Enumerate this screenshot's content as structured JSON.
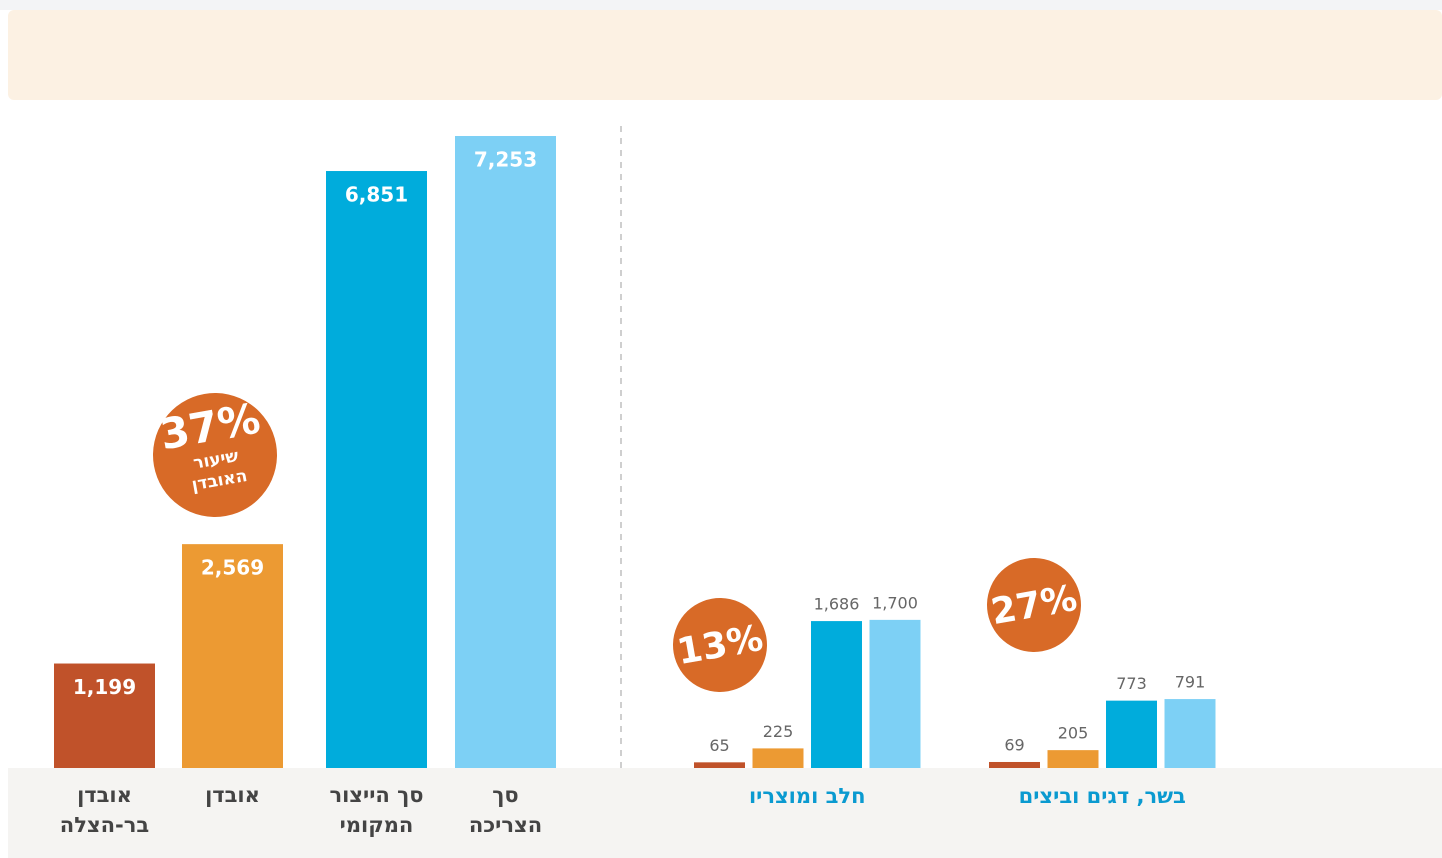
{
  "chart_data": [
    {
      "type": "bar",
      "categories": [
        [
          "אובדן",
          "בר-הצלה"
        ],
        [
          "אובדן"
        ],
        [
          "סך הייצור",
          "המקומי"
        ],
        [
          "סך",
          "הצריכה"
        ]
      ],
      "values": [
        1199,
        2569,
        6851,
        7253
      ],
      "value_labels": [
        "1,199",
        "2,569",
        "6,851",
        "7,253"
      ],
      "colors": [
        "#c0522a",
        "#ec9a33",
        "#00acdc",
        "#7dd0f5"
      ],
      "badge": "37%",
      "badge_caption": [
        "שיעור",
        "האובדן"
      ]
    },
    {
      "type": "grouped-bar",
      "categories": [
        "חלב ומוצריו",
        "בשר, דגים וביצים"
      ],
      "series": [
        {
          "color": "#c0522a",
          "values": [
            65,
            69
          ]
        },
        {
          "color": "#ec9a33",
          "values": [
            225,
            205
          ]
        },
        {
          "color": "#00acdc",
          "values": [
            1686,
            773
          ],
          "value_labels": [
            "1,686",
            "773"
          ]
        },
        {
          "color": "#7dd0f5",
          "values": [
            1700,
            791
          ],
          "value_labels": [
            "1,700",
            "791"
          ]
        }
      ],
      "badges": [
        "13%",
        "27%"
      ]
    }
  ]
}
